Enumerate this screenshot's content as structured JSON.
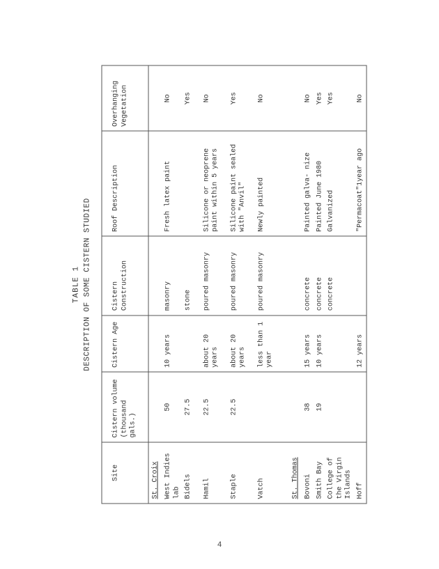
{
  "caption_top": "TABLE 1",
  "caption_main": "DESCRIPTION OF SOME CISTERN STUDIED",
  "page_number": "4",
  "headers": {
    "site": "Site",
    "volume": "Cistern volume (thousand gals.)",
    "age": "Cistern Age",
    "construction": "Cistern Construction",
    "roof": "Roof Description",
    "veg": "Overhanging Vegetation"
  },
  "sections": {
    "croix": "St. Croix",
    "thomas": "St. Thomas"
  },
  "rows": {
    "wil": {
      "site": "West Indies lab",
      "vol": "50",
      "age": "10 years",
      "con": "masonry",
      "roof": "Fresh latex paint",
      "veg": "No"
    },
    "bidels": {
      "site": "Bidels",
      "vol": "27.5",
      "age": "",
      "con": "stone",
      "roof": "",
      "veg": "Yes"
    },
    "hamil": {
      "site": "Hamil",
      "vol": "22.5",
      "age": "about 20 years",
      "con": "poured masonry",
      "roof": "Silicone or neoprene paint within 5 years",
      "veg": "No"
    },
    "staple": {
      "site": "Staple",
      "vol": "22.5",
      "age": "about 20 years",
      "con": "poured masonry",
      "roof": "Silicone paint sealed with \"Anvil\"",
      "veg": "Yes"
    },
    "vatch": {
      "site": "Vatch",
      "vol": "",
      "age": "less than 1 year",
      "con": "poured masonry",
      "roof": "Newly painted",
      "veg": "No"
    },
    "bovoni": {
      "site": "Bovoni",
      "vol": "38",
      "age": "15 years",
      "con": "concrete",
      "roof": "Painted galva- nize",
      "veg": "No"
    },
    "smith": {
      "site": "Smith Bay",
      "vol": "19",
      "age": "10 years",
      "con": "concrete",
      "roof": "Painted June 1980",
      "veg": "Yes"
    },
    "cvi": {
      "site": "College of the Virgin Islands",
      "vol": "",
      "age": "",
      "con": "concrete",
      "roof": "Galvanized",
      "veg": "Yes"
    },
    "hoff": {
      "site": "Hoff",
      "vol": "",
      "age": "12 years",
      "con": "",
      "roof": "\"Permacoat\"1year ago",
      "veg": "No"
    }
  }
}
